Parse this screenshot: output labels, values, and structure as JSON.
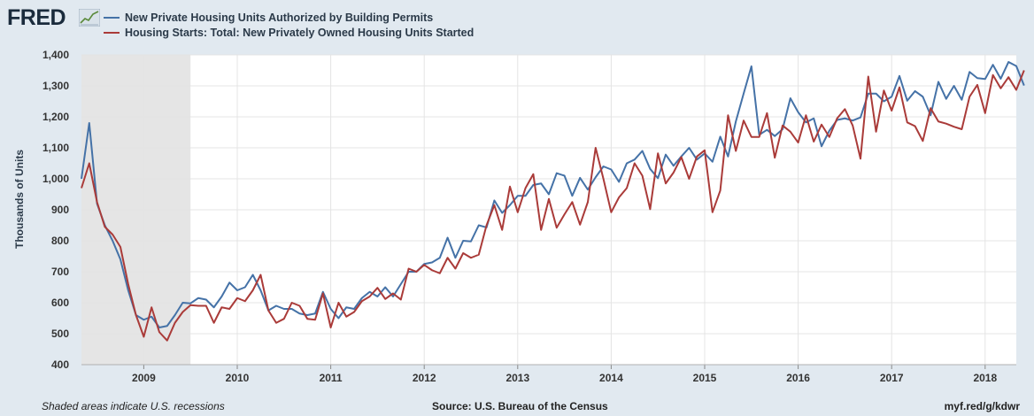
{
  "brand": {
    "name": "FRED"
  },
  "footer": {
    "recession_note": "Shaded areas indicate U.S. recessions",
    "source": "Source: U.S. Bureau of the Census",
    "short_url": "myf.red/g/kdwr"
  },
  "chart_data": {
    "type": "line",
    "title": "",
    "ylabel": "Thousands of Units",
    "xlabel": "",
    "ylim": [
      400,
      1400
    ],
    "yticks": [
      400,
      500,
      600,
      700,
      800,
      900,
      1000,
      1100,
      1200,
      1300,
      1400
    ],
    "ytick_labels": [
      "400",
      "500",
      "600",
      "700",
      "800",
      "900",
      "1,000",
      "1,100",
      "1,200",
      "1,300",
      "1,400"
    ],
    "xlim": [
      "2008-05",
      "2018-05"
    ],
    "xticks": [
      "2009-01",
      "2010-01",
      "2011-01",
      "2012-01",
      "2013-01",
      "2014-01",
      "2015-01",
      "2016-01",
      "2017-01",
      "2018-01"
    ],
    "xtick_labels": [
      "2009",
      "2010",
      "2011",
      "2012",
      "2013",
      "2014",
      "2015",
      "2016",
      "2017",
      "2018"
    ],
    "grid": true,
    "legend_position": "top-left",
    "recessions": [
      {
        "start": "2008-05",
        "end": "2009-06"
      }
    ],
    "start_month": "2008-05",
    "series": [
      {
        "name": "New Private Housing Units Authorized by Building Permits",
        "color": "#4572a7",
        "values": [
          1000,
          1180,
          920,
          850,
          800,
          740,
          640,
          560,
          545,
          555,
          520,
          525,
          560,
          600,
          598,
          615,
          610,
          585,
          620,
          665,
          640,
          650,
          690,
          640,
          575,
          590,
          580,
          580,
          565,
          560,
          565,
          635,
          580,
          550,
          585,
          580,
          615,
          635,
          620,
          650,
          620,
          660,
          700,
          700,
          725,
          730,
          745,
          810,
          745,
          800,
          798,
          850,
          843,
          930,
          890,
          915,
          945,
          945,
          980,
          985,
          950,
          1018,
          1010,
          945,
          1003,
          965,
          1005,
          1040,
          1030,
          990,
          1050,
          1062,
          1090,
          1032,
          1002,
          1078,
          1042,
          1072,
          1100,
          1062,
          1082,
          1055,
          1136,
          1072,
          1185,
          1275,
          1363,
          1142,
          1158,
          1138,
          1160,
          1260,
          1215,
          1182,
          1195,
          1105,
          1155,
          1190,
          1195,
          1188,
          1198,
          1275,
          1275,
          1250,
          1265,
          1332,
          1252,
          1283,
          1265,
          1205,
          1313,
          1258,
          1300,
          1255,
          1345,
          1325,
          1322,
          1368,
          1323,
          1377,
          1364,
          1301
        ]
      },
      {
        "name": "Housing Starts: Total: New Privately Owned Housing Units Started",
        "color": "#aa3b39",
        "values": [
          970,
          1050,
          925,
          845,
          820,
          780,
          660,
          560,
          490,
          585,
          505,
          478,
          535,
          570,
          592,
          590,
          590,
          535,
          585,
          580,
          615,
          605,
          640,
          690,
          575,
          535,
          548,
          600,
          590,
          548,
          545,
          630,
          520,
          600,
          555,
          570,
          605,
          620,
          648,
          612,
          630,
          610,
          710,
          700,
          722,
          705,
          695,
          745,
          710,
          760,
          745,
          755,
          850,
          915,
          835,
          975,
          892,
          970,
          1015,
          835,
          935,
          842,
          885,
          925,
          852,
          925,
          1100,
          1000,
          892,
          940,
          970,
          1050,
          1010,
          902,
          1082,
          985,
          1020,
          1070,
          1000,
          1072,
          1092,
          892,
          962,
          1205,
          1090,
          1188,
          1135,
          1135,
          1212,
          1068,
          1172,
          1152,
          1117,
          1205,
          1120,
          1175,
          1135,
          1195,
          1225,
          1172,
          1065,
          1330,
          1152,
          1285,
          1220,
          1295,
          1182,
          1170,
          1122,
          1228,
          1185,
          1178,
          1168,
          1160,
          1265,
          1303,
          1212,
          1335,
          1292,
          1328,
          1287,
          1350
        ]
      }
    ]
  }
}
